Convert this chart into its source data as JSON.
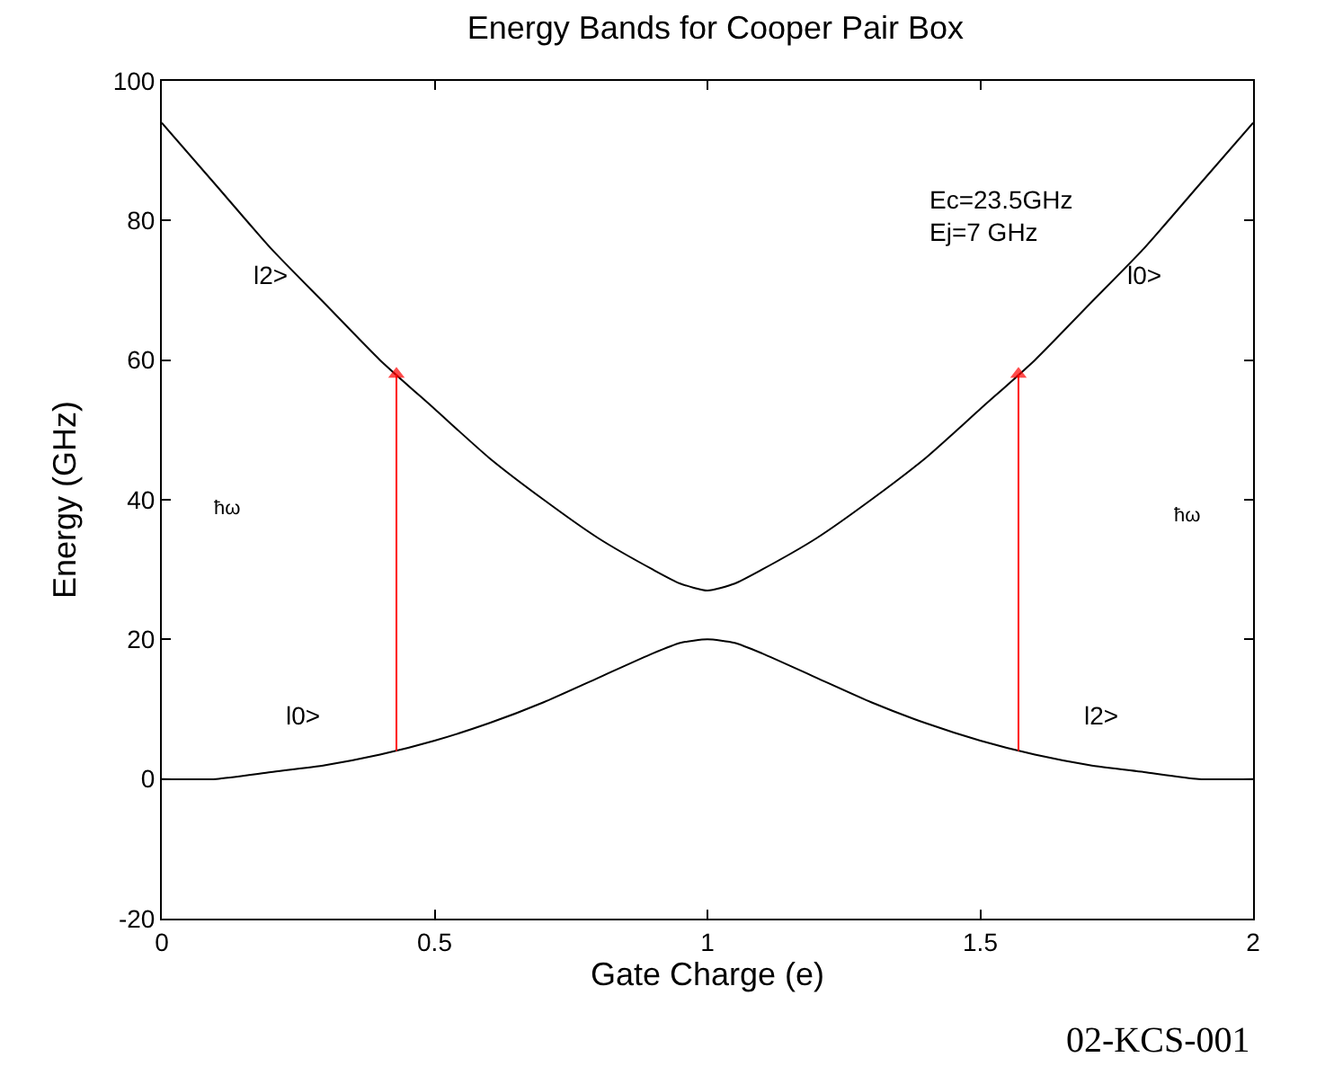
{
  "chart_data": {
    "type": "line",
    "title": "Energy Bands for Cooper Pair Box",
    "xlabel": "Gate Charge (e)",
    "ylabel": "Energy (GHz)",
    "xlim": [
      0,
      2
    ],
    "ylim": [
      -20,
      100
    ],
    "xticks": [
      0,
      0.5,
      1,
      1.5,
      2
    ],
    "yticks": [
      -20,
      0,
      20,
      40,
      60,
      80,
      100
    ],
    "marker": "none",
    "line_style": "solid",
    "series": [
      {
        "color": "#000000",
        "x": [
          0,
          0.1,
          0.2,
          0.3,
          0.4,
          0.5,
          0.6,
          0.7,
          0.8,
          0.9,
          0.95,
          1,
          1.05,
          1.1,
          1.2,
          1.3,
          1.4,
          1.5,
          1.6,
          1.7,
          1.8,
          1.9,
          2
        ],
        "values": [
          94,
          85,
          76,
          68,
          60,
          53,
          46,
          40,
          34.5,
          30,
          28,
          27,
          28,
          30,
          34.5,
          40,
          46,
          53,
          60,
          68,
          76,
          85,
          94
        ]
      },
      {
        "color": "#000000",
        "x": [
          0,
          0.1,
          0.2,
          0.3,
          0.4,
          0.5,
          0.6,
          0.7,
          0.8,
          0.9,
          0.95,
          1,
          1.05,
          1.1,
          1.2,
          1.3,
          1.4,
          1.5,
          1.6,
          1.7,
          1.8,
          1.9,
          2
        ],
        "values": [
          0,
          0,
          1,
          2,
          3.5,
          5.5,
          8,
          11,
          14.5,
          18,
          19.5,
          20,
          19.5,
          18,
          14.5,
          11,
          8,
          5.5,
          3.5,
          2,
          1,
          0,
          0
        ]
      },
      {
        "color": "#ff0000",
        "x": [
          0.43,
          0.43
        ],
        "values": [
          4,
          58
        ],
        "marker": "triangle"
      },
      {
        "color": "#ff0000",
        "x": [
          1.57,
          1.57
        ],
        "values": [
          4,
          58
        ],
        "marker": "triangle"
      }
    ],
    "annotations": [
      "Ec=23.5GHz\nEj=7 GHz",
      "l2>",
      "l0>",
      "l0>",
      "l2>",
      "ħω",
      "ħω",
      "02-KCS-001"
    ]
  }
}
